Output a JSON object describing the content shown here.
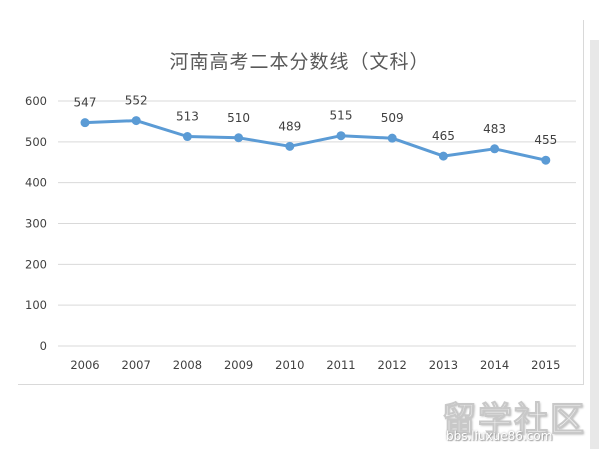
{
  "chart_data": {
    "type": "line",
    "title": "河南高考二本分数线（文科）",
    "xlabel": "",
    "ylabel": "",
    "categories": [
      "2006",
      "2007",
      "2008",
      "2009",
      "2010",
      "2011",
      "2012",
      "2013",
      "2014",
      "2015"
    ],
    "series": [
      {
        "values": [
          547,
          552,
          513,
          510,
          489,
          515,
          509,
          465,
          483,
          455
        ]
      }
    ],
    "data_labels": [
      "547",
      "552",
      "513",
      "510",
      "489",
      "515",
      "509",
      "465",
      "483",
      "455"
    ],
    "ylim": [
      0,
      600
    ],
    "yticks": [
      "0",
      "100",
      "200",
      "300",
      "400",
      "500",
      "600"
    ],
    "grid": true,
    "legend": "none",
    "line_color": "#5b9bd5",
    "grid_color": "#d9d9d9"
  },
  "watermark": {
    "brand": "留学社区",
    "url": "bbs.liuxue86.com"
  }
}
